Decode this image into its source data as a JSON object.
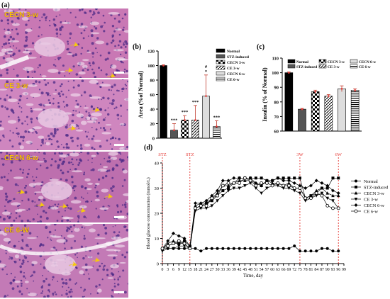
{
  "panel_a": {
    "letter": "(a)",
    "images": [
      {
        "label": "CECN 3-w",
        "tint": "#c978b4"
      },
      {
        "label": "CE 3-w",
        "tint": "#cf86bf"
      },
      {
        "label": "CECN 6-w",
        "tint": "#bd6fae"
      },
      {
        "label": "CE 6-W",
        "tint": "#c37ab6"
      }
    ],
    "arrow_color": "#f6c80e"
  },
  "chart_data": [
    {
      "panel": "(b)",
      "type": "bar",
      "ylabel": "Area (%of Normal)",
      "ylim": [
        0,
        120
      ],
      "yticks": [
        0,
        20,
        40,
        60,
        80,
        100,
        120
      ],
      "categories": [
        "Normal",
        "STZ-induced",
        "CECN 3-w",
        "CE 3-w",
        "CECN 6-w",
        "CE 6-w"
      ],
      "values": [
        100,
        11,
        25,
        25,
        58,
        16
      ],
      "errors": [
        1,
        9,
        6,
        20,
        29,
        8
      ],
      "annotations": [
        "",
        "***",
        "***",
        "***",
        "#\n*",
        "***"
      ],
      "legend": [
        "Normal",
        "STZ-induced",
        "CECN 3-w",
        "CE 3-w",
        "CECN 6-w",
        "CE 6-w"
      ]
    },
    {
      "panel": "(c)",
      "type": "bar",
      "ylabel": "Insulin (% of Normal)",
      "ylim": [
        60,
        110
      ],
      "yticks": [
        60,
        70,
        80,
        90,
        100,
        110
      ],
      "categories": [
        "Normal",
        "STZ-induced",
        "CECN 3-w",
        "CE 3-w",
        "CECN 6-w",
        "CE 6-w"
      ],
      "values": [
        100,
        75,
        87,
        84,
        89,
        88
      ],
      "errors": [
        0.5,
        0.5,
        1,
        1,
        2,
        1
      ],
      "legend": [
        "Normal",
        "STZ-induced",
        "CECN 3-w",
        "CE 3-w",
        "CECN 6-w",
        "CE 6-w"
      ]
    },
    {
      "panel": "(d)",
      "type": "line",
      "xlabel": "Time, day",
      "ylabel": "Blood glucose concentration (mmol/L)",
      "ylim": [
        0,
        40
      ],
      "yticks": [
        0,
        10,
        20,
        30,
        40
      ],
      "xlim": [
        0,
        99
      ],
      "xticks": [
        0,
        3,
        6,
        9,
        12,
        15,
        18,
        21,
        24,
        27,
        30,
        33,
        36,
        39,
        42,
        45,
        48,
        51,
        54,
        57,
        60,
        63,
        66,
        69,
        72,
        75,
        78,
        81,
        84,
        87,
        90,
        93,
        96,
        99
      ],
      "vlines": [
        {
          "x": 0,
          "label": "STZ"
        },
        {
          "x": 15,
          "label": "STZ"
        },
        {
          "x": 75,
          "label": "3W"
        },
        {
          "x": 96,
          "label": "6W"
        }
      ],
      "x": [
        0,
        3,
        6,
        9,
        12,
        15,
        18,
        21,
        24,
        27,
        30,
        33,
        36,
        39,
        42,
        45,
        48,
        51,
        54,
        57,
        60,
        63,
        66,
        69,
        72,
        75,
        78,
        81,
        84,
        87,
        90,
        93,
        96
      ],
      "series": [
        {
          "name": "Normal",
          "marker": "circle",
          "values": [
            6,
            6,
            6,
            6,
            6,
            6,
            6,
            5,
            6,
            6,
            6,
            6,
            6,
            6,
            6,
            6,
            6,
            6,
            6,
            6,
            6,
            6,
            6,
            6,
            7,
            5,
            5,
            5,
            5,
            6,
            6,
            5,
            5
          ]
        },
        {
          "name": "STZ-induced",
          "marker": "square",
          "values": [
            6,
            7,
            8,
            8,
            9,
            7,
            22,
            23,
            24,
            25,
            27,
            29,
            30,
            32,
            34,
            34,
            34,
            34,
            34,
            33,
            33,
            34,
            34,
            34,
            34,
            34,
            26,
            27,
            28,
            30,
            30,
            34,
            34
          ]
        },
        {
          "name": "CECN 3-w",
          "marker": "triangle-up",
          "values": [
            6,
            8,
            9,
            8,
            8,
            6,
            23,
            24,
            24,
            26,
            28,
            31,
            31,
            32,
            33,
            33,
            33,
            32,
            31,
            33,
            32,
            32,
            31,
            32,
            30,
            30,
            26,
            27,
            29,
            30,
            28,
            27,
            27
          ]
        },
        {
          "name": "CE 3-w",
          "marker": "triangle-down",
          "values": [
            5,
            6,
            6,
            7,
            7,
            6,
            21,
            22,
            22,
            23,
            25,
            27,
            29,
            30,
            30,
            31,
            32,
            30,
            28,
            30,
            31,
            31,
            30,
            30,
            29,
            28,
            25,
            26,
            27,
            28,
            26,
            25,
            22
          ]
        },
        {
          "name": "CECN 6-w",
          "marker": "diamond",
          "values": [
            6,
            9,
            12,
            11,
            10,
            7,
            24,
            24,
            25,
            27,
            29,
            33,
            33,
            34,
            34,
            34,
            34,
            32,
            31,
            33,
            33,
            34,
            33,
            33,
            32,
            31,
            30,
            31,
            33,
            32,
            31,
            29,
            28
          ]
        },
        {
          "name": "CE 6-w",
          "marker": "circle-open",
          "values": [
            6,
            7,
            8,
            9,
            8,
            6,
            22,
            23,
            23,
            26,
            27,
            31,
            32,
            32,
            32,
            34,
            33,
            31,
            32,
            32,
            31,
            32,
            31,
            31,
            30,
            30,
            26,
            26,
            28,
            27,
            23,
            22,
            22
          ]
        }
      ]
    }
  ]
}
